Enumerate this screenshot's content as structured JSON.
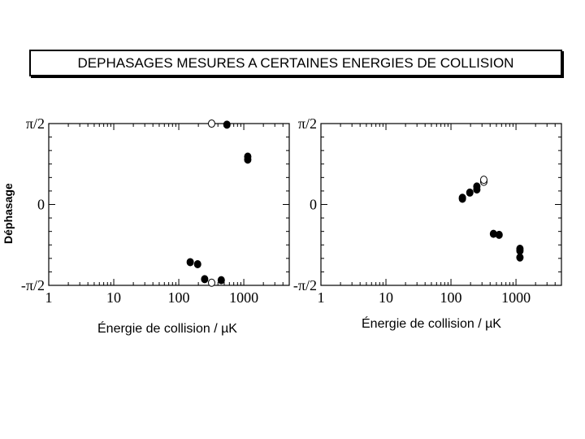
{
  "title": "DEPHASAGES MESURES A CERTAINES ENERGIES DE COLLISION",
  "ylabel": "Déphasage",
  "chart_data": [
    {
      "type": "scatter",
      "xscale": "log",
      "xlim": [
        1,
        5000
      ],
      "ylim": [
        -1.5708,
        1.5708
      ],
      "xticks": [
        {
          "value": 1,
          "label": "1"
        },
        {
          "value": 10,
          "label": "10"
        },
        {
          "value": 100,
          "label": "100"
        },
        {
          "value": 1000,
          "label": "1000"
        }
      ],
      "yticks": [
        {
          "value": 1.5708,
          "label": "π/2"
        },
        {
          "value": 0,
          "label": "0"
        },
        {
          "value": -1.5708,
          "label": "-π/2"
        }
      ],
      "xlabel": "Énergie de collision / µK",
      "ylabel": "Déphasage",
      "series": [
        {
          "filled": true,
          "points": [
            {
              "x": 150,
              "y": -1.12
            },
            {
              "x": 195,
              "y": -1.16
            },
            {
              "x": 250,
              "y": -1.45
            },
            {
              "x": 450,
              "y": -1.47
            },
            {
              "x": 550,
              "y": 1.55
            },
            {
              "x": 1150,
              "y": 0.93
            },
            {
              "x": 1150,
              "y": 0.87
            }
          ]
        },
        {
          "filled": false,
          "points": [
            {
              "x": 320,
              "y": 1.57
            },
            {
              "x": 320,
              "y": -1.52
            }
          ]
        }
      ]
    },
    {
      "type": "scatter",
      "xscale": "log",
      "xlim": [
        1,
        5000
      ],
      "ylim": [
        -1.5708,
        1.5708
      ],
      "xticks": [
        {
          "value": 1,
          "label": "1"
        },
        {
          "value": 10,
          "label": "10"
        },
        {
          "value": 100,
          "label": "100"
        },
        {
          "value": 1000,
          "label": "1000"
        }
      ],
      "yticks": [
        {
          "value": 1.5708,
          "label": "π/2"
        },
        {
          "value": 0,
          "label": "0"
        },
        {
          "value": -1.5708,
          "label": "-π/2"
        }
      ],
      "xlabel": "Énergie de collision / µK",
      "series": [
        {
          "filled": true,
          "points": [
            {
              "x": 150,
              "y": 0.13
            },
            {
              "x": 150,
              "y": 0.11
            },
            {
              "x": 195,
              "y": 0.23
            },
            {
              "x": 250,
              "y": 0.35
            },
            {
              "x": 250,
              "y": 0.29
            },
            {
              "x": 450,
              "y": -0.57
            },
            {
              "x": 550,
              "y": -0.59
            },
            {
              "x": 1150,
              "y": -0.86
            },
            {
              "x": 1150,
              "y": -0.9
            },
            {
              "x": 1150,
              "y": -1.03
            }
          ]
        },
        {
          "filled": false,
          "points": [
            {
              "x": 320,
              "y": 0.44
            },
            {
              "x": 320,
              "y": 0.48
            }
          ]
        }
      ]
    }
  ]
}
